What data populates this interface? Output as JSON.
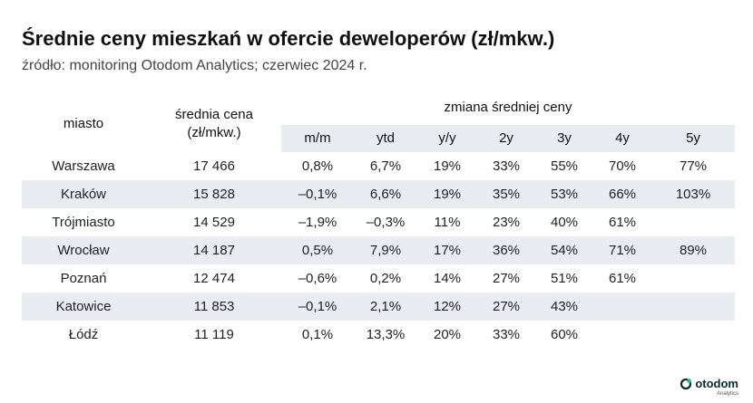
{
  "title": "Średnie ceny mieszkań w ofercie deweloperów (zł/mkw.)",
  "subtitle": "źródło: monitoring Otodom Analytics; czerwiec 2024 r.",
  "table": {
    "header_city": "miasto",
    "header_avg_line1": "średnia cena",
    "header_avg_line2": "(zł/mkw.)",
    "header_change": "zmiana średniej ceny",
    "subheaders": [
      "m/m",
      "ytd",
      "y/y",
      "2y",
      "3y",
      "4y",
      "5y"
    ],
    "rows": [
      {
        "city": "Warszawa",
        "avg": "17 466",
        "changes": [
          "0,8%",
          "6,7%",
          "19%",
          "33%",
          "55%",
          "70%",
          "77%"
        ]
      },
      {
        "city": "Kraków",
        "avg": "15 828",
        "changes": [
          "–0,1%",
          "6,6%",
          "19%",
          "35%",
          "53%",
          "66%",
          "103%"
        ]
      },
      {
        "city": "Trójmiasto",
        "avg": "14 529",
        "changes": [
          "–1,9%",
          "–0,3%",
          "11%",
          "23%",
          "40%",
          "61%",
          ""
        ]
      },
      {
        "city": "Wrocław",
        "avg": "14 187",
        "changes": [
          "0,5%",
          "7,9%",
          "17%",
          "36%",
          "54%",
          "71%",
          "89%"
        ]
      },
      {
        "city": "Poznań",
        "avg": "12 474",
        "changes": [
          "–0,6%",
          "0,2%",
          "14%",
          "27%",
          "51%",
          "61%",
          ""
        ]
      },
      {
        "city": "Katowice",
        "avg": "11 853",
        "changes": [
          "–0,1%",
          "2,1%",
          "12%",
          "27%",
          "43%",
          "",
          ""
        ]
      },
      {
        "city": "Łódź",
        "avg": "11 119",
        "changes": [
          "0,1%",
          "13,3%",
          "20%",
          "33%",
          "60%",
          "",
          ""
        ]
      }
    ]
  },
  "logo": {
    "name": "otodom",
    "sub": "Analytics"
  },
  "colors": {
    "row_shade": "#e9edf2",
    "brand_green": "#1fbf88",
    "brand_dark": "#0a2a2a"
  }
}
